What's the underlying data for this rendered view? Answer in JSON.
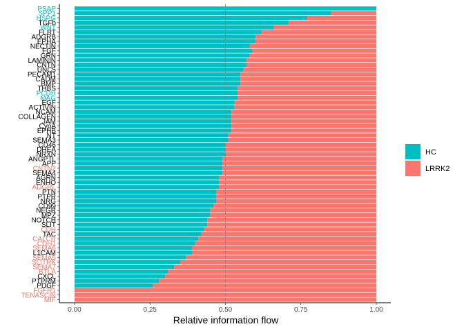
{
  "chart_data": {
    "type": "bar",
    "orientation": "horizontal",
    "stacked": true,
    "xlabel": "Relative information flow",
    "ylabel": "",
    "xlim": [
      0,
      1
    ],
    "xticks": [
      "0.00",
      "0.25",
      "0.50",
      "0.75",
      "1.00"
    ],
    "reference_line": 0.5,
    "legend_position": "right",
    "grid": false,
    "series": [
      {
        "name": "HC",
        "color": "#00BFC4"
      },
      {
        "name": "LRRK2",
        "color": "#F8766D"
      }
    ],
    "categories": [
      "PSAP",
      "SPP1",
      "HSPG",
      "TGFb",
      "WNT",
      "FLRT",
      "ADGRB",
      "EPHA",
      "NECTIN",
      "FGF",
      "GRN",
      "LAMININ",
      "CNTN",
      "UNC5",
      "PECAM1",
      "CADM",
      "BMP",
      "THBS",
      "PCDH",
      "MAG",
      "EGF",
      "ACTIVIN",
      "NCAM",
      "COLLAGEN",
      "JAM",
      "CypA",
      "EPHB",
      "NT",
      "SEMA3",
      "CD46",
      "DHEA",
      "NRXN",
      "ANGPTL",
      "APP",
      "CNTN2",
      "SEMA4",
      "AGRN",
      "ENHO",
      "ADGRL",
      "PTN",
      "PTPR",
      "NRG",
      "CD99",
      "NEGR",
      "MPZ",
      "NOTCH",
      "SLIT",
      "CDH",
      "TAC",
      "CALCR",
      "CDH1",
      "SEMA6",
      "L1CAM",
      "SEMA5",
      "SLITRK",
      "SEMA7",
      "BTLA",
      "CXCL",
      "PTPRM",
      "PDGF",
      "FGFR1",
      "TENASCIN",
      "MIF"
    ],
    "hc_values": [
      1.0,
      0.85,
      0.77,
      0.71,
      0.66,
      0.62,
      0.6,
      0.6,
      0.58,
      0.59,
      0.58,
      0.57,
      0.57,
      0.56,
      0.55,
      0.55,
      0.55,
      0.54,
      0.54,
      0.54,
      0.53,
      0.53,
      0.52,
      0.52,
      0.52,
      0.52,
      0.52,
      0.51,
      0.51,
      0.5,
      0.5,
      0.5,
      0.49,
      0.49,
      0.49,
      0.49,
      0.48,
      0.48,
      0.48,
      0.47,
      0.47,
      0.47,
      0.46,
      0.45,
      0.45,
      0.44,
      0.44,
      0.43,
      0.42,
      0.41,
      0.4,
      0.39,
      0.39,
      0.37,
      0.35,
      0.33,
      0.31,
      0.3,
      0.28,
      0.26,
      0.0,
      0.0,
      0.0
    ],
    "label_colors": [
      "#00BFC4",
      "#00BFC4",
      "#00BFC4",
      "#000000",
      "#00BFC4",
      "#000000",
      "#000000",
      "#000000",
      "#000000",
      "#000000",
      "#000000",
      "#000000",
      "#000000",
      "#000000",
      "#000000",
      "#000000",
      "#000000",
      "#000000",
      "#00BFC4",
      "#00BFC4",
      "#000000",
      "#000000",
      "#000000",
      "#000000",
      "#000000",
      "#000000",
      "#000000",
      "#000000",
      "#000000",
      "#000000",
      "#000000",
      "#000000",
      "#000000",
      "#000000",
      "#F8766D",
      "#000000",
      "#000000",
      "#000000",
      "#F8766D",
      "#000000",
      "#000000",
      "#000000",
      "#000000",
      "#000000",
      "#000000",
      "#000000",
      "#000000",
      "#F8766D",
      "#000000",
      "#F8766D",
      "#F8766D",
      "#F8766D",
      "#000000",
      "#F8766D",
      "#F8766D",
      "#F8766D",
      "#F8766D",
      "#000000",
      "#000000",
      "#000000",
      "#F8766D",
      "#F8766D",
      "#F8766D"
    ]
  }
}
